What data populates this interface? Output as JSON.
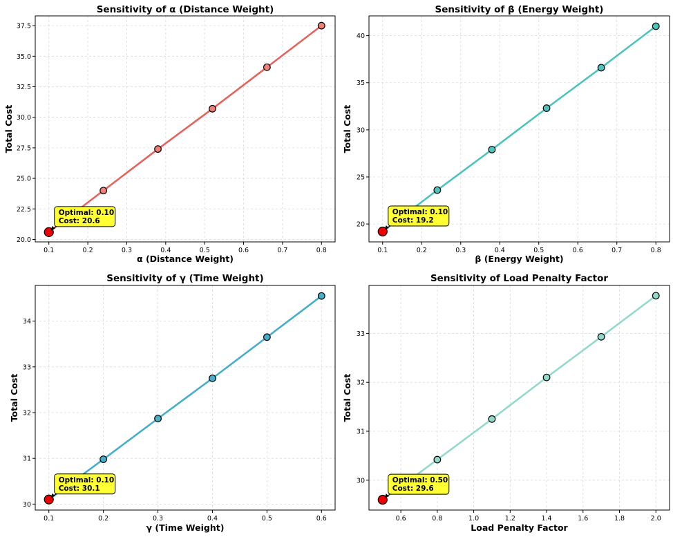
{
  "chart_data": [
    {
      "type": "line",
      "title": "Sensitivity of α (Distance Weight)",
      "xlabel": "α (Distance Weight)",
      "ylabel": "Total Cost",
      "x": [
        0.1,
        0.24,
        0.38,
        0.52,
        0.66,
        0.8
      ],
      "values": [
        20.6,
        24.0,
        27.4,
        30.7,
        34.1,
        37.5
      ],
      "xlim": [
        0.065,
        0.835
      ],
      "ylim": [
        19.8,
        38.3
      ],
      "xticks": [
        0.1,
        0.2,
        0.3,
        0.4,
        0.5,
        0.6,
        0.7,
        0.8
      ],
      "xtick_labels": [
        "0.1",
        "0.2",
        "0.3",
        "0.4",
        "0.5",
        "0.6",
        "0.7",
        "0.8"
      ],
      "yticks": [
        20.0,
        22.5,
        25.0,
        27.5,
        30.0,
        32.5,
        35.0,
        37.5
      ],
      "ytick_labels": [
        "20.0",
        "22.5",
        "25.0",
        "27.5",
        "30.0",
        "32.5",
        "35.0",
        "37.5"
      ],
      "color": "#e8625c",
      "marker_color": "#f07f78",
      "optimal": {
        "x": 0.1,
        "y": 20.6,
        "line1": "Optimal: 0.10",
        "line2": "Cost: 20.6"
      }
    },
    {
      "type": "line",
      "title": "Sensitivity of β (Energy Weight)",
      "xlabel": "β (Energy Weight)",
      "ylabel": "Total Cost",
      "x": [
        0.1,
        0.24,
        0.38,
        0.52,
        0.66,
        0.8
      ],
      "values": [
        19.2,
        23.6,
        27.9,
        32.3,
        36.6,
        41.0
      ],
      "xlim": [
        0.065,
        0.835
      ],
      "ylim": [
        18.1,
        42.1
      ],
      "xticks": [
        0.1,
        0.2,
        0.3,
        0.4,
        0.5,
        0.6,
        0.7,
        0.8
      ],
      "xtick_labels": [
        "0.1",
        "0.2",
        "0.3",
        "0.4",
        "0.5",
        "0.6",
        "0.7",
        "0.8"
      ],
      "yticks": [
        20,
        25,
        30,
        35,
        40
      ],
      "ytick_labels": [
        "20",
        "25",
        "30",
        "35",
        "40"
      ],
      "color": "#4ec3be",
      "marker_color": "#4ec3be",
      "optimal": {
        "x": 0.1,
        "y": 19.2,
        "line1": "Optimal: 0.10",
        "line2": "Cost: 19.2"
      }
    },
    {
      "type": "line",
      "title": "Sensitivity of γ (Time Weight)",
      "xlabel": "γ (Time Weight)",
      "ylabel": "Total Cost",
      "x": [
        0.1,
        0.2,
        0.3,
        0.4,
        0.5,
        0.6
      ],
      "values": [
        30.1,
        30.98,
        31.87,
        32.75,
        33.65,
        34.55
      ],
      "xlim": [
        0.075,
        0.625
      ],
      "ylim": [
        29.87,
        34.78
      ],
      "xticks": [
        0.1,
        0.2,
        0.3,
        0.4,
        0.5,
        0.6
      ],
      "xtick_labels": [
        "0.1",
        "0.2",
        "0.3",
        "0.4",
        "0.5",
        "0.6"
      ],
      "yticks": [
        30,
        31,
        32,
        33,
        34
      ],
      "ytick_labels": [
        "30",
        "31",
        "32",
        "33",
        "34"
      ],
      "color": "#45aec9",
      "marker_color": "#45aec9",
      "optimal": {
        "x": 0.1,
        "y": 30.1,
        "line1": "Optimal: 0.10",
        "line2": "Cost: 30.1"
      }
    },
    {
      "type": "line",
      "title": "Sensitivity of Load Penalty Factor",
      "xlabel": "Load Penalty Factor",
      "ylabel": "Total Cost",
      "x": [
        0.5,
        0.8,
        1.1,
        1.4,
        1.7,
        2.0
      ],
      "values": [
        29.6,
        30.42,
        31.25,
        32.1,
        32.93,
        33.77
      ],
      "xlim": [
        0.425,
        2.075
      ],
      "ylim": [
        29.39,
        33.98
      ],
      "xticks": [
        0.6,
        0.8,
        1.0,
        1.2,
        1.4,
        1.6,
        1.8,
        2.0
      ],
      "xtick_labels": [
        "0.6",
        "0.8",
        "1.0",
        "1.2",
        "1.4",
        "1.6",
        "1.8",
        "2.0"
      ],
      "yticks": [
        30,
        31,
        32,
        33
      ],
      "ytick_labels": [
        "30",
        "31",
        "32",
        "33"
      ],
      "color": "#92d9cc",
      "marker_color": "#92d9cc",
      "optimal": {
        "x": 0.5,
        "y": 29.6,
        "line1": "Optimal: 0.50",
        "line2": "Cost: 29.6"
      }
    }
  ]
}
